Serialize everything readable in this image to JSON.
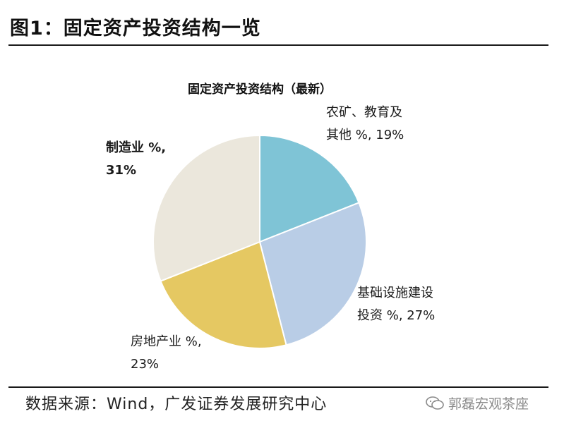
{
  "figure": {
    "title": "图1：固定资产投资结构一览",
    "source": "数据来源：Wind，广发证券发展研究中心",
    "watermark": "郭磊宏观茶座"
  },
  "chart_data": {
    "type": "pie",
    "title": "固定资产投资结构（最新）",
    "slices": [
      {
        "name": "农矿、教育及其他 %",
        "value": 19,
        "label_lines": [
          "农矿、教育及",
          "其他 %, 19%"
        ],
        "color": "#7fc4d6",
        "bold": false
      },
      {
        "name": "基础设施建设投资 %",
        "value": 27,
        "label_lines": [
          "基础设施建设",
          "投资 %, 27%"
        ],
        "color": "#b9cde6",
        "bold": false
      },
      {
        "name": "房地产业 %",
        "value": 23,
        "label_lines": [
          "房地产业 %,",
          "23%"
        ],
        "color": "#e5c862",
        "bold": false
      },
      {
        "name": "制造业 %",
        "value": 31,
        "label_lines": [
          "制造业 %,",
          "31%"
        ],
        "color": "#ebe7dc",
        "bold": true
      }
    ],
    "start_angle": "12 o'clock",
    "direction": "clockwise",
    "legend": "none"
  }
}
